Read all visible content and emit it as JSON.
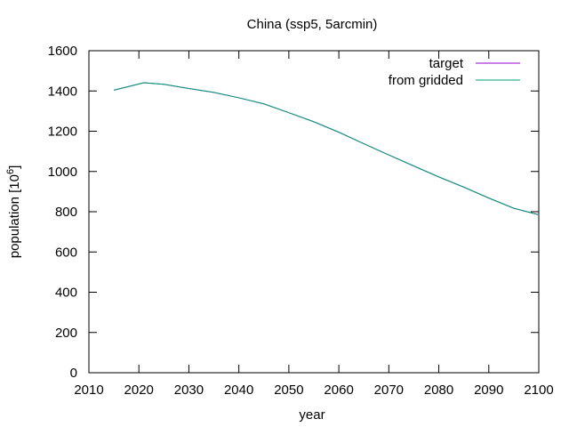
{
  "chart_data": {
    "type": "line",
    "title": "China (ssp5, 5arcmin)",
    "xlabel": "year",
    "ylabel_main": "population [10",
    "ylabel_sup": "6",
    "ylabel_close": "]",
    "xlim": [
      2010,
      2100
    ],
    "ylim": [
      0,
      1600
    ],
    "xticks": [
      2010,
      2020,
      2030,
      2040,
      2050,
      2060,
      2070,
      2080,
      2090,
      2100
    ],
    "yticks": [
      0,
      200,
      400,
      600,
      800,
      1000,
      1200,
      1400,
      1600
    ],
    "grid": false,
    "legend_position": "top-right",
    "series": [
      {
        "name": "target",
        "color": "#9400d3",
        "x": [
          2015,
          2020,
          2021,
          2025,
          2030,
          2035,
          2040,
          2045,
          2050,
          2055,
          2060,
          2065,
          2070,
          2075,
          2080,
          2085,
          2090,
          2095,
          2100
        ],
        "y": [
          1404,
          1435,
          1441,
          1433,
          1412,
          1393,
          1366,
          1336,
          1292,
          1247,
          1195,
          1138,
          1082,
          1027,
          973,
          922,
          868,
          817,
          785
        ]
      },
      {
        "name": "from gridded",
        "color": "#009e73",
        "x": [
          2015,
          2020,
          2021,
          2025,
          2030,
          2035,
          2040,
          2045,
          2050,
          2055,
          2060,
          2065,
          2070,
          2075,
          2080,
          2085,
          2090,
          2095,
          2100
        ],
        "y": [
          1404,
          1435,
          1441,
          1433,
          1412,
          1393,
          1366,
          1336,
          1292,
          1247,
          1195,
          1138,
          1082,
          1027,
          973,
          922,
          868,
          817,
          785
        ]
      }
    ]
  }
}
